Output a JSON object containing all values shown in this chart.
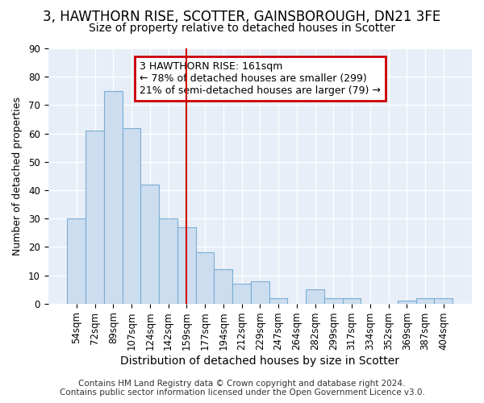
{
  "title1": "3, HAWTHORN RISE, SCOTTER, GAINSBOROUGH, DN21 3FE",
  "title2": "Size of property relative to detached houses in Scotter",
  "xlabel": "Distribution of detached houses by size in Scotter",
  "ylabel": "Number of detached properties",
  "categories": [
    "54sqm",
    "72sqm",
    "89sqm",
    "107sqm",
    "124sqm",
    "142sqm",
    "159sqm",
    "177sqm",
    "194sqm",
    "212sqm",
    "229sqm",
    "247sqm",
    "264sqm",
    "282sqm",
    "299sqm",
    "317sqm",
    "334sqm",
    "352sqm",
    "369sqm",
    "387sqm",
    "404sqm"
  ],
  "values": [
    30,
    61,
    75,
    62,
    42,
    30,
    27,
    18,
    12,
    7,
    8,
    2,
    0,
    5,
    2,
    2,
    0,
    0,
    1,
    2,
    2
  ],
  "bar_color": "#ccddf0",
  "bar_edge_color": "#7aadd4",
  "vline_x_index": 6,
  "vline_color": "#cc0000",
  "annotation_text": "3 HAWTHORN RISE: 161sqm\n← 78% of detached houses are smaller (299)\n21% of semi-detached houses are larger (79) →",
  "annotation_box_color": "#ffffff",
  "annotation_box_edge_color": "#cc0000",
  "ylim": [
    0,
    90
  ],
  "yticks": [
    0,
    10,
    20,
    30,
    40,
    50,
    60,
    70,
    80,
    90
  ],
  "bg_color": "#ffffff",
  "plot_bg_color": "#e8eef8",
  "footer": "Contains HM Land Registry data © Crown copyright and database right 2024.\nContains public sector information licensed under the Open Government Licence v3.0.",
  "title1_fontsize": 12,
  "title2_fontsize": 10,
  "xlabel_fontsize": 10,
  "ylabel_fontsize": 9,
  "tick_fontsize": 8.5,
  "footer_fontsize": 7.5,
  "annot_fontsize": 9
}
